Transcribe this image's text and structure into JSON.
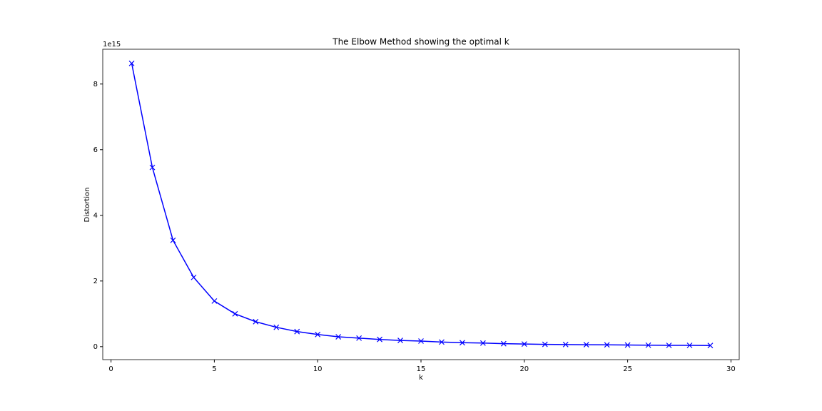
{
  "chart_data": {
    "type": "line",
    "title": "The Elbow Method showing the optimal k",
    "xlabel": "k",
    "ylabel": "Distortion",
    "y_offset_label": "1e15",
    "x": [
      1,
      2,
      3,
      4,
      5,
      6,
      7,
      8,
      9,
      10,
      11,
      12,
      13,
      14,
      15,
      16,
      17,
      18,
      19,
      20,
      21,
      22,
      23,
      24,
      25,
      26,
      27,
      28,
      29
    ],
    "values": [
      8.63,
      5.46,
      3.24,
      2.11,
      1.39,
      1.0,
      0.76,
      0.59,
      0.46,
      0.37,
      0.3,
      0.26,
      0.22,
      0.19,
      0.17,
      0.14,
      0.12,
      0.11,
      0.09,
      0.08,
      0.07,
      0.065,
      0.06,
      0.055,
      0.05,
      0.045,
      0.04,
      0.04,
      0.035
    ],
    "color": "#0000ff",
    "marker": "x",
    "xlim": [
      -0.4,
      30.4
    ],
    "xticks": [
      0,
      5,
      10,
      15,
      20,
      25,
      30
    ],
    "ylim": [
      -0.395,
      9.06
    ],
    "yticks": [
      0,
      2,
      4,
      6,
      8
    ],
    "grid": false
  }
}
